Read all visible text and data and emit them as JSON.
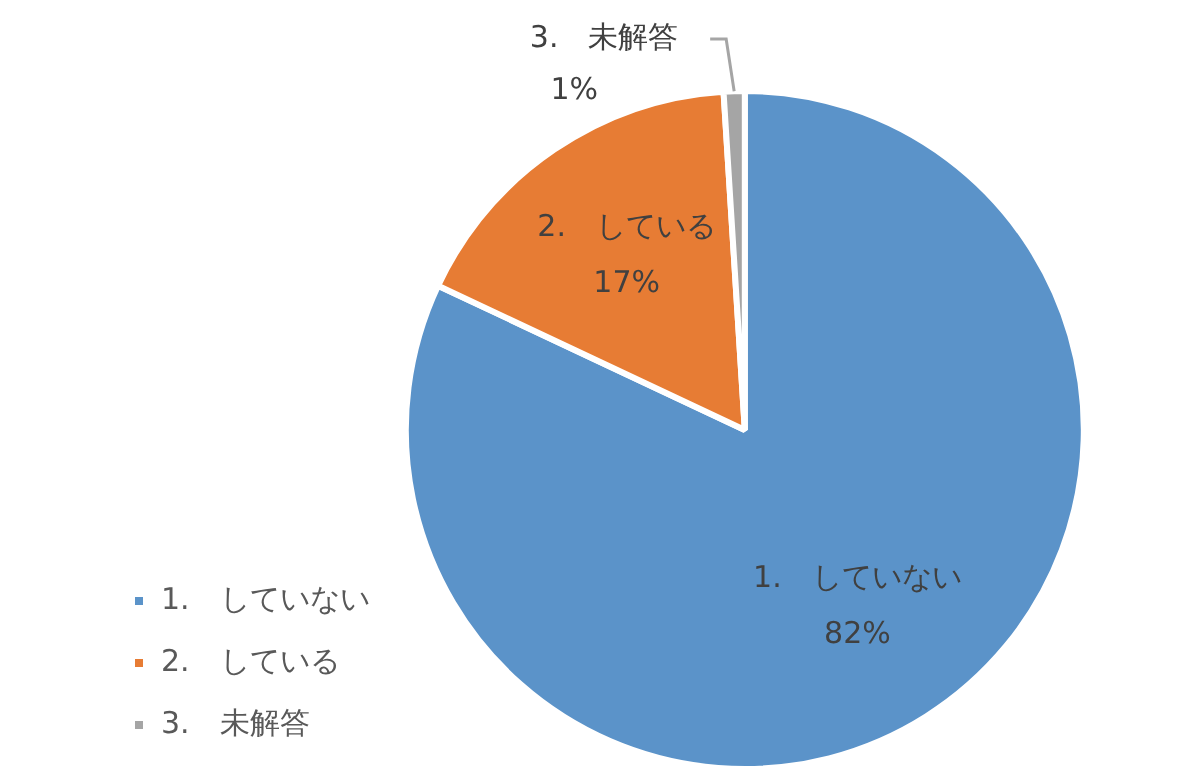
{
  "chart_data": {
    "type": "pie",
    "categories": [
      "1.　していない",
      "2.　している",
      "3.　未解答"
    ],
    "values": [
      82,
      17,
      1
    ],
    "colors": [
      "#5b93c9",
      "#e77c34",
      "#a5a5a5"
    ],
    "value_labels": [
      "82%",
      "17%",
      "1%"
    ],
    "legend": "bottom left"
  }
}
